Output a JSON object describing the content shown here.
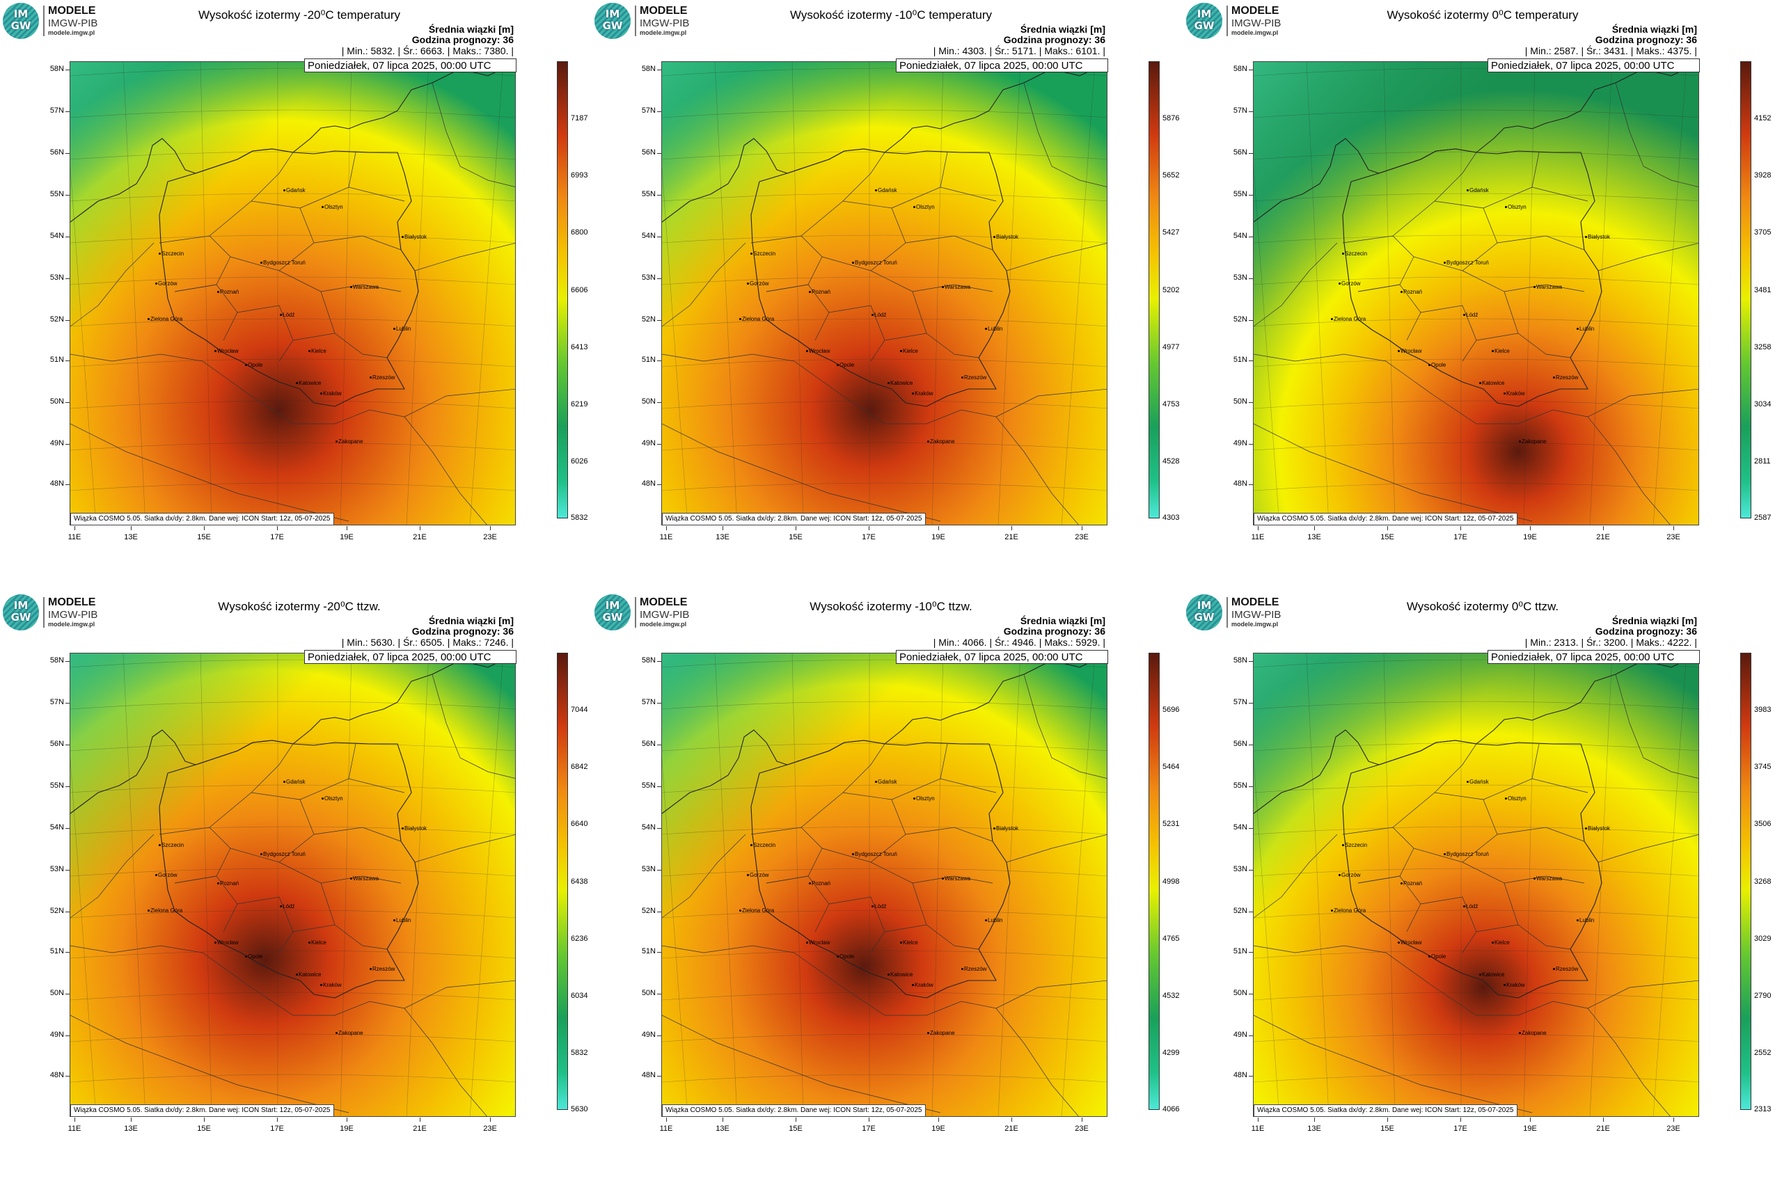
{
  "logo": {
    "text": "IM GW",
    "name": "MODELE",
    "org": "IMGW-PIB",
    "site": "modele.imgw.pl"
  },
  "header": {
    "line1": "Średnia wiązki [m]",
    "line2": "Godzina prognozy: 36"
  },
  "date_label": "Poniedziałek, 07 lipca 2025, 00:00 UTC",
  "footer_label": "Wiązka COSMO 5.05. Siatka dx/dy: 2.8km. Dane wej: ICON Start: 12z, 05-07-2025",
  "lat_labels": [
    "58N",
    "57N",
    "56N",
    "55N",
    "54N",
    "53N",
    "52N",
    "51N",
    "50N",
    "49N",
    "48N"
  ],
  "lon_labels": [
    "11E",
    "13E",
    "15E",
    "17E",
    "19E",
    "21E",
    "23E"
  ],
  "cities": [
    "Gdańsk",
    "Olsztyn",
    "Szczecin",
    "Białystok",
    "Bydgoszcz Toruń",
    "Gorzów",
    "Poznań",
    "Warszawa",
    "Zielona Góra",
    "Łódź",
    "Lublin",
    "Wrocław",
    "Kielce",
    "Opole",
    "Rzeszów",
    "Katowice",
    "Kraków",
    "Zakopane"
  ],
  "panels": [
    {
      "title": "Wysokość izotermy -20⁰C temperatury",
      "stats": "| Min.:    5832. | Śr.:    6663. | Maks.:    7380. |",
      "cbar": [
        "7187",
        "6993",
        "6800",
        "6606",
        "6413",
        "6219",
        "6026",
        "5832"
      ],
      "stats_values": {
        "min": 5832,
        "mean": 6663,
        "max": 7380
      }
    },
    {
      "title": "Wysokość izotermy -10⁰C temperatury",
      "stats": "| Min.:    4303. | Śr.:    5171. | Maks.:    6101. |",
      "cbar": [
        "5876",
        "5652",
        "5427",
        "5202",
        "4977",
        "4753",
        "4528",
        "4303"
      ],
      "stats_values": {
        "min": 4303,
        "mean": 5171,
        "max": 6101
      }
    },
    {
      "title": "Wysokość izotermy 0⁰C temperatury",
      "stats": "| Min.:    2587. | Śr.:    3431. | Maks.:    4375. |",
      "cbar": [
        "4152",
        "3928",
        "3705",
        "3481",
        "3258",
        "3034",
        "2811",
        "2587"
      ],
      "stats_values": {
        "min": 2587,
        "mean": 3431,
        "max": 4375
      }
    },
    {
      "title": "Wysokość izotermy -20⁰C ttzw.",
      "stats": "| Min.:    5630. | Śr.:    6505. | Maks.:    7246. |",
      "cbar": [
        "7044",
        "6842",
        "6640",
        "6438",
        "6236",
        "6034",
        "5832",
        "5630"
      ],
      "stats_values": {
        "min": 5630,
        "mean": 6505,
        "max": 7246
      }
    },
    {
      "title": "Wysokość izotermy -10⁰C ttzw.",
      "stats": "| Min.:    4066. | Śr.:    4946. | Maks.:    5929. |",
      "cbar": [
        "5696",
        "5464",
        "5231",
        "4998",
        "4765",
        "4532",
        "4299",
        "4066"
      ],
      "stats_values": {
        "min": 4066,
        "mean": 4946,
        "max": 5929
      }
    },
    {
      "title": "Wysokość izotermy 0⁰C ttzw.",
      "stats": "| Min.:    2313. | Śr.:    3200. | Maks.:    4222. |",
      "cbar": [
        "3983",
        "3745",
        "3506",
        "3268",
        "3029",
        "2790",
        "2552",
        "2313"
      ],
      "stats_values": {
        "min": 2313,
        "mean": 3200,
        "max": 4222
      }
    }
  ],
  "palette": {
    "low": "#4de8d8",
    "green": "#1aa05a",
    "yellow": "#f5f200",
    "orange": "#f08a12",
    "red": "#d03a10",
    "dark": "#5a1a0e"
  }
}
